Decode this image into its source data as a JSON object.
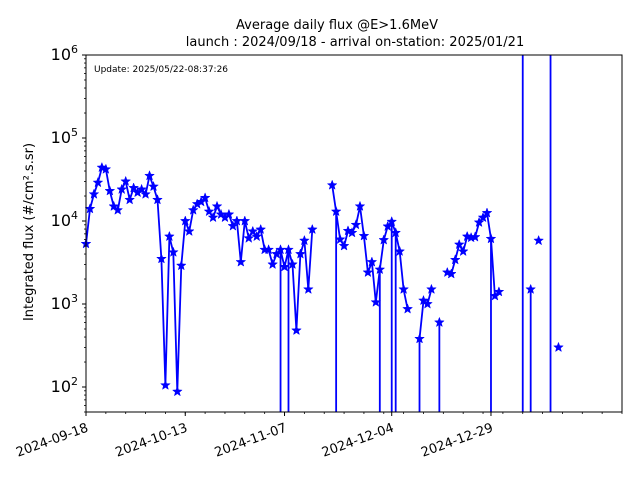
{
  "chart_data": {
    "type": "line",
    "title": "Average daily flux @E>1.6MeV",
    "subtitle": "launch : 2024/09/18 - arrival on-station: 2025/01/21",
    "annotation": "Update: 2025/05/22-08:37:26",
    "xlabel": "",
    "ylabel": "Integrated flux (#/cm².s.sr)",
    "yscale": "log",
    "ylim": [
      50,
      1000000
    ],
    "xlim": [
      "2024-09-18",
      "2025-01-31"
    ],
    "xticks": [
      "2024-09-18",
      "2024-10-13",
      "2024-11-07",
      "2024-12-04",
      "2024-12-29"
    ],
    "yticks": [
      {
        "value": 100,
        "base": "10",
        "exp": "2"
      },
      {
        "value": 1000,
        "base": "10",
        "exp": "3"
      },
      {
        "value": 10000,
        "base": "10",
        "exp": "4"
      },
      {
        "value": 100000,
        "base": "10",
        "exp": "5"
      },
      {
        "value": 1000000,
        "base": "10",
        "exp": "6"
      }
    ],
    "grid": false,
    "series": [
      {
        "color": "#0000ff",
        "marker": "star",
        "x": [
          "2024-09-18",
          "2024-09-19",
          "2024-09-20",
          "2024-09-21",
          "2024-09-22",
          "2024-09-23",
          "2024-09-24",
          "2024-09-25",
          "2024-09-26",
          "2024-09-27",
          "2024-09-28",
          "2024-09-29",
          "2024-09-30",
          "2024-10-01",
          "2024-10-02",
          "2024-10-03",
          "2024-10-04",
          "2024-10-05",
          "2024-10-06",
          "2024-10-07",
          "2024-10-08",
          "2024-10-09",
          "2024-10-10",
          "2024-10-11",
          "2024-10-12",
          "2024-10-13",
          "2024-10-14",
          "2024-10-15",
          "2024-10-16",
          "2024-10-17",
          "2024-10-18",
          "2024-10-19",
          "2024-10-20",
          "2024-10-21",
          "2024-10-22",
          "2024-10-23",
          "2024-10-24",
          "2024-10-25",
          "2024-10-26",
          "2024-10-27",
          "2024-10-28",
          "2024-10-29",
          "2024-10-30",
          "2024-10-31",
          "2024-11-01",
          "2024-11-02",
          "2024-11-03",
          "2024-11-04",
          "2024-11-05",
          "2024-11-06",
          "2024-11-07",
          "2024-11-08",
          "2024-11-09",
          "2024-11-10",
          "2024-11-11",
          "2024-11-12",
          "2024-11-13",
          "2024-11-14",
          "2024-11-15",
          "2024-11-16",
          "2024-11-17",
          "2024-11-18",
          "2024-11-19",
          "2024-11-20",
          "2024-11-21",
          "2024-11-22",
          "2024-11-23",
          "2024-11-24",
          "2024-11-25",
          "2024-11-26",
          "2024-11-27",
          "2024-11-28",
          "2024-11-29",
          "2024-11-30",
          "2024-12-01",
          "2024-12-02",
          "2024-12-03",
          "2024-12-04",
          "2024-12-05",
          "2024-12-06",
          "2024-12-07",
          "2024-12-08",
          "2024-12-09",
          "2024-12-10",
          "2024-12-11",
          "2024-12-12",
          "2024-12-13",
          "2024-12-14",
          "2024-12-15",
          "2024-12-16",
          "2024-12-17",
          "2024-12-18",
          "2024-12-19",
          "2024-12-20",
          "2024-12-21",
          "2024-12-22",
          "2024-12-23",
          "2024-12-24",
          "2024-12-25",
          "2024-12-26",
          "2024-12-27",
          "2024-12-28",
          "2024-12-29",
          "2024-12-30",
          "2024-12-31",
          "2025-01-01",
          "2025-01-02",
          "2025-01-03",
          "2025-01-04",
          "2025-01-05",
          "2025-01-06",
          "2025-01-07",
          "2025-01-08",
          "2025-01-09",
          "2025-01-10",
          "2025-01-11",
          "2025-01-12",
          "2025-01-13",
          "2025-01-14",
          "2025-01-15",
          "2025-01-16",
          "2025-01-17",
          "2025-01-18",
          "2025-01-19",
          "2025-01-20",
          "2025-01-21",
          "2025-01-22",
          "2025-01-23",
          "2025-01-24",
          "2025-01-25",
          "2025-01-26"
        ],
        "y": [
          5300,
          14000,
          21000,
          29000,
          44000,
          42000,
          23000,
          15000,
          13500,
          24000,
          30000,
          18000,
          25000,
          22000,
          24000,
          21000,
          35000,
          26000,
          18000,
          3500,
          105,
          6500,
          4200,
          88,
          2900,
          10000,
          7500,
          13500,
          16000,
          17000,
          19000,
          13000,
          11000,
          15000,
          12000,
          11000,
          12000,
          8700,
          10000,
          3200,
          10000,
          6200,
          7500,
          6500,
          7900,
          4500,
          4500,
          3000,
          4000,
          4500,
          2800,
          4500,
          3000,
          480,
          4000,
          5800,
          1500,
          7900,
          null,
          null,
          null,
          null,
          27000,
          13000,
          6000,
          5000,
          7600,
          7200,
          9000,
          15000,
          6600,
          2400,
          3200,
          1050,
          2600,
          5900,
          8600,
          9800,
          7200,
          4300,
          1500,
          870,
          null,
          null,
          380,
          1100,
          1000,
          1500,
          null,
          600,
          null,
          2400,
          2300,
          3400,
          5200,
          4300,
          6500,
          6300,
          6400,
          9600,
          11000,
          12500,
          6100,
          1250,
          1400,
          null,
          null,
          null,
          null,
          null,
          null,
          null,
          1500,
          null,
          5800,
          null,
          null,
          null,
          null,
          300,
          null,
          null,
          null,
          null,
          null,
          null,
          null,
          null,
          null,
          null,
          null
        ]
      }
    ],
    "drops": [
      "2024-11-06",
      "2024-11-08",
      "2024-11-20",
      "2024-12-01",
      "2024-12-04",
      "2024-12-05",
      "2024-12-11",
      "2024-12-16",
      "2024-12-29",
      "2025-01-06",
      "2025-01-08",
      "2025-01-13"
    ]
  }
}
